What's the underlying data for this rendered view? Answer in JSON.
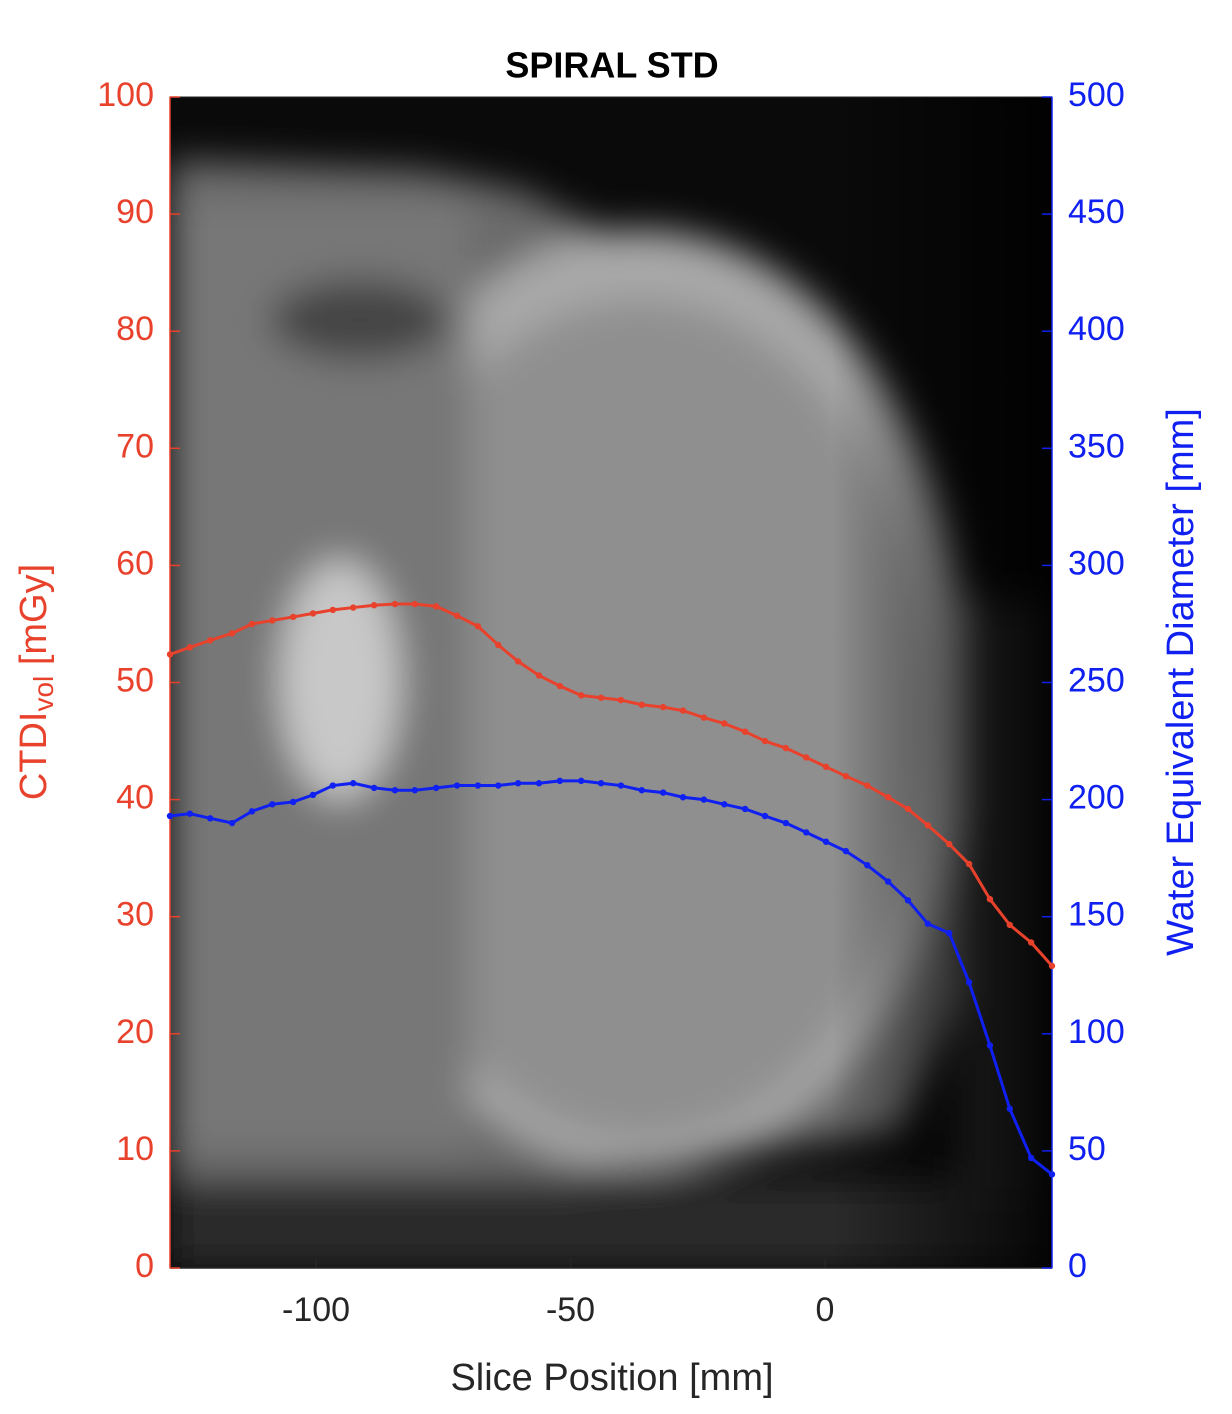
{
  "chart_data": {
    "type": "line",
    "title": "SPIRAL STD",
    "xlabel": "Slice Position [mm]",
    "ylabel_parts": [
      "CTDI",
      "vol",
      " [mGy]"
    ],
    "y2label": "Water Equivalent Diameter [mm]",
    "x": [
      -128.7,
      -124.8,
      -120.8,
      -116.5,
      -112.6,
      -108.6,
      -104.5,
      -100.6,
      -96.7,
      -92.7,
      -88.6,
      -84.5,
      -80.6,
      -76.4,
      -72.3,
      -68.2,
      -64.2,
      -60.3,
      -56.2,
      -52.1,
      -47.9,
      -44.0,
      -40.1,
      -36.0,
      -31.8,
      -27.9,
      -23.8,
      -19.8,
      -15.7,
      -11.8,
      -7.7,
      -3.7,
      0.2,
      4.1,
      8.3,
      12.4,
      16.3,
      20.2,
      24.4,
      28.3,
      32.4,
      36.3,
      40.5,
      44.6
    ],
    "series": [
      {
        "name": "CTDIvol",
        "color": "#e8412c",
        "axis": "y",
        "values": [
          52.4,
          53.0,
          53.6,
          54.2,
          55.0,
          55.3,
          55.6,
          55.9,
          56.2,
          56.4,
          56.6,
          56.7,
          56.7,
          56.5,
          55.7,
          54.8,
          53.2,
          51.8,
          50.6,
          49.7,
          48.9,
          48.7,
          48.5,
          48.1,
          47.9,
          47.6,
          47.0,
          46.5,
          45.8,
          45.0,
          44.4,
          43.6,
          42.8,
          42.0,
          41.2,
          40.2,
          39.2,
          37.8,
          36.2,
          34.5,
          31.5,
          29.3,
          27.8,
          25.8
        ]
      },
      {
        "name": "Water Equivalent Diameter",
        "color": "#1020f0",
        "axis": "y2",
        "values": [
          193,
          194,
          192,
          190,
          195,
          198,
          199,
          202,
          206,
          207,
          205,
          204,
          204,
          205,
          206,
          206,
          206,
          207,
          207,
          208,
          208,
          207,
          206,
          204,
          203,
          201,
          200,
          198,
          196,
          193,
          190,
          186,
          182,
          178,
          172,
          165,
          157,
          147,
          143,
          122,
          95,
          68,
          47,
          40
        ]
      }
    ],
    "xlim": [
      -128.7,
      44.6
    ],
    "xticks": [
      -100,
      -50,
      0
    ],
    "ylim": [
      0,
      100
    ],
    "yticks": [
      0,
      10,
      20,
      30,
      40,
      50,
      60,
      70,
      80,
      90,
      100
    ],
    "y2lim": [
      0,
      500
    ],
    "y2ticks": [
      0,
      50,
      100,
      150,
      200,
      250,
      300,
      350,
      400,
      450,
      500
    ],
    "ycolor": "#e8412c",
    "y2color": "#1020f0",
    "xcolor": "#262626"
  }
}
